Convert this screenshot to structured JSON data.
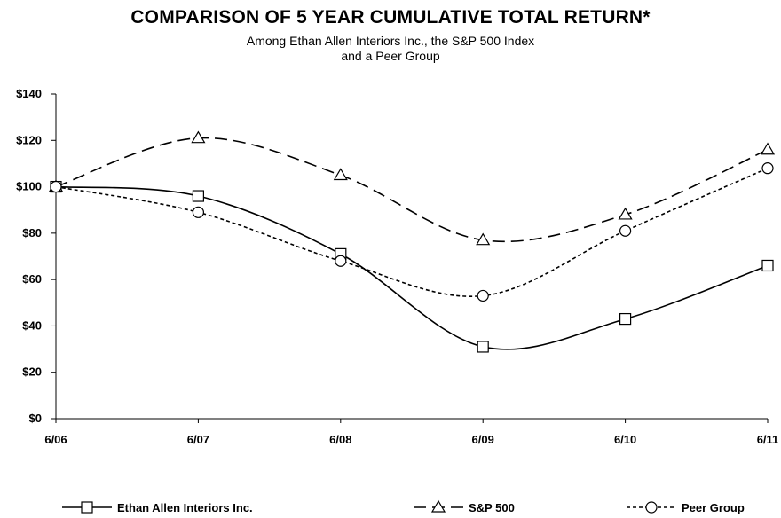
{
  "chart_data": {
    "type": "line",
    "title": "COMPARISON OF 5 YEAR CUMULATIVE TOTAL RETURN*",
    "subtitle_lines": [
      "Among Ethan Allen Interiors Inc., the S&P 500 Index",
      "and a Peer Group"
    ],
    "categories": [
      "6/06",
      "6/07",
      "6/08",
      "6/09",
      "6/10",
      "6/11"
    ],
    "y_ticks": [
      "$0",
      "$20",
      "$40",
      "$60",
      "$80",
      "$100",
      "$120",
      "$140"
    ],
    "ylim": [
      0,
      140
    ],
    "grid": false,
    "legend_position": "bottom",
    "series": [
      {
        "name": "Ethan Allen Interiors Inc.",
        "values": [
          100,
          96,
          71,
          31,
          43,
          66
        ],
        "marker": "square",
        "dash": "solid",
        "color": "#000000"
      },
      {
        "name": "S&P 500",
        "values": [
          100,
          121,
          105,
          77,
          88,
          116
        ],
        "marker": "triangle",
        "dash": "dashed",
        "color": "#000000"
      },
      {
        "name": "Peer Group",
        "values": [
          100,
          89,
          68,
          53,
          81,
          108
        ],
        "marker": "circle",
        "dash": "dotted",
        "color": "#000000"
      }
    ]
  }
}
